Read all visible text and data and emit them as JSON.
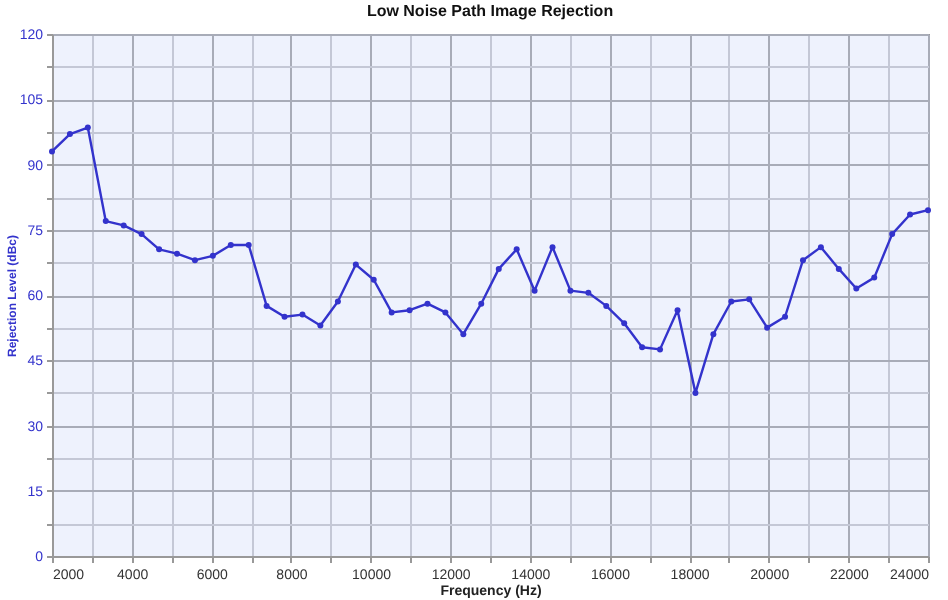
{
  "chart_data": {
    "type": "line",
    "title": "Low Noise Path Image Rejection",
    "xlabel": "Frequency (Hz)",
    "ylabel": "Rejection Level (dBc)",
    "x": [
      2000,
      2450,
      2900,
      3350,
      3800,
      4250,
      4690,
      5140,
      5590,
      6040,
      6490,
      6940,
      7390,
      7840,
      8290,
      8740,
      9180,
      9630,
      10080,
      10530,
      10980,
      11430,
      11880,
      12330,
      12780,
      13220,
      13670,
      14120,
      14570,
      15020,
      15470,
      15920,
      16370,
      16820,
      17270,
      17710,
      18160,
      18610,
      19060,
      19510,
      19960,
      20410,
      20860,
      21310,
      21760,
      22200,
      22650,
      23100,
      23550,
      24000
    ],
    "series": [
      {
        "color": "#3333cc",
        "values": [
          93,
          97,
          98.5,
          77,
          76,
          74,
          70.5,
          69.5,
          68,
          69,
          71.5,
          71.5,
          57.5,
          55,
          55.5,
          53,
          58.5,
          67,
          63.5,
          56,
          56.5,
          58,
          56,
          51,
          58,
          66,
          70.5,
          61,
          71,
          61,
          60.5,
          57.5,
          53.5,
          48,
          47.5,
          56.5,
          37.5,
          51,
          58.5,
          59,
          52.5,
          55,
          68,
          71,
          66,
          61.5,
          64,
          74,
          78.5,
          79.5
        ]
      }
    ],
    "xlim": [
      2000,
      24000
    ],
    "xticks": [
      2000,
      {
        "value": 3000,
        "label": null
      },
      4000,
      {
        "value": 5000,
        "label": null
      },
      6000,
      {
        "value": 7000,
        "label": null
      },
      8000,
      {
        "value": 9000,
        "label": null
      },
      10000,
      {
        "value": 11000,
        "label": null
      },
      12000,
      {
        "value": 13000,
        "label": null
      },
      14000,
      {
        "value": 15000,
        "label": null
      },
      16000,
      {
        "value": 17000,
        "label": null
      },
      18000,
      {
        "value": 19000,
        "label": null
      },
      20000,
      {
        "value": 21000,
        "label": null
      },
      22000,
      {
        "value": 23000,
        "label": null
      },
      24000
    ],
    "ylim": [
      0,
      120
    ],
    "yticks": [
      0,
      {
        "value": 7.5,
        "label": null
      },
      15,
      {
        "value": 22.5,
        "label": null
      },
      30,
      {
        "value": 37.5,
        "label": null
      },
      45,
      {
        "value": 52.5,
        "label": null
      },
      60,
      {
        "value": 67.5,
        "label": null
      },
      75,
      {
        "value": 82.5,
        "label": null
      },
      90,
      {
        "value": 97.5,
        "label": null
      },
      105,
      {
        "value": 112.5,
        "label": null
      },
      120
    ],
    "grid": true,
    "marker": "circle",
    "line_style": "solid"
  }
}
